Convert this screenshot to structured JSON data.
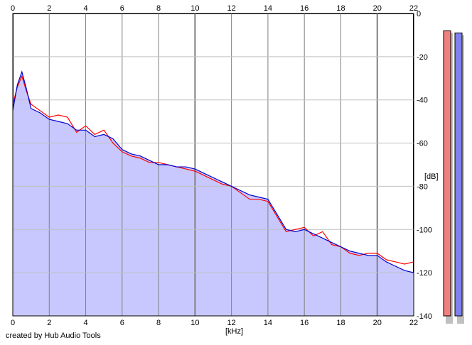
{
  "chart_data": {
    "type": "area",
    "xlabel": "[kHz]",
    "ylabel": "[dB]",
    "xlim": [
      0,
      22
    ],
    "ylim": [
      -140,
      0
    ],
    "x_ticks": [
      "0",
      "2",
      "4",
      "6",
      "8",
      "10",
      "12",
      "14",
      "16",
      "18",
      "20",
      "22"
    ],
    "y_ticks": [
      "0",
      "-20",
      "-40",
      "-60",
      "-80",
      "-100",
      "-120",
      "-140"
    ],
    "grid": true,
    "fill_color": "#c8c8ff",
    "series": [
      {
        "color": "#ff0000",
        "x": [
          0,
          0.25,
          0.5,
          0.75,
          1,
          1.5,
          2,
          2.5,
          3,
          3.5,
          4,
          4.5,
          5,
          5.5,
          6,
          6.5,
          7,
          7.5,
          8,
          8.5,
          9,
          9.5,
          10,
          10.5,
          11,
          11.5,
          12,
          12.5,
          13,
          13.5,
          14,
          14.5,
          15,
          15.5,
          16,
          16.5,
          17,
          17.5,
          18,
          18.5,
          19,
          19.5,
          20,
          20.5,
          21,
          21.5,
          22
        ],
        "values": [
          -42,
          -34,
          -29,
          -36,
          -42,
          -45,
          -48,
          -47,
          -48,
          -55,
          -52,
          -56,
          -54,
          -60,
          -64,
          -66,
          -67,
          -69,
          -69,
          -70,
          -71,
          -72,
          -73,
          -75,
          -77,
          -79,
          -80,
          -83,
          -86,
          -86,
          -87,
          -94,
          -101,
          -100,
          -99,
          -103,
          -101,
          -107,
          -108,
          -111,
          -112,
          -111,
          -111,
          -114,
          -115,
          -116,
          -115
        ]
      },
      {
        "color": "#0000cc",
        "x": [
          0,
          0.25,
          0.5,
          0.75,
          1,
          1.5,
          2,
          2.5,
          3,
          3.5,
          4,
          4.5,
          5,
          5.5,
          6,
          6.5,
          7,
          7.5,
          8,
          8.5,
          9,
          9.5,
          10,
          10.5,
          11,
          11.5,
          12,
          12.5,
          13,
          13.5,
          14,
          14.5,
          15,
          15.5,
          16,
          16.5,
          17,
          17.5,
          18,
          18.5,
          19,
          19.5,
          20,
          20.5,
          21,
          21.5,
          22
        ],
        "values": [
          -45,
          -33,
          -27,
          -35,
          -44,
          -46,
          -49,
          -50,
          -51,
          -54,
          -54,
          -57,
          -56,
          -58,
          -63,
          -65,
          -66,
          -68,
          -70,
          -70,
          -71,
          -71,
          -72,
          -74,
          -76,
          -78,
          -80,
          -82,
          -84,
          -85,
          -86,
          -93,
          -100,
          -101,
          -100,
          -102,
          -104,
          -106,
          -108,
          -110,
          -111,
          -112,
          -112,
          -115,
          -117,
          -119,
          -120
        ]
      }
    ]
  },
  "level_meters": [
    {
      "color": "#f08080",
      "level_db": -8
    },
    {
      "color": "#8080f0",
      "level_db": -9
    }
  ],
  "credit_text": "created by Hub Audio Tools"
}
